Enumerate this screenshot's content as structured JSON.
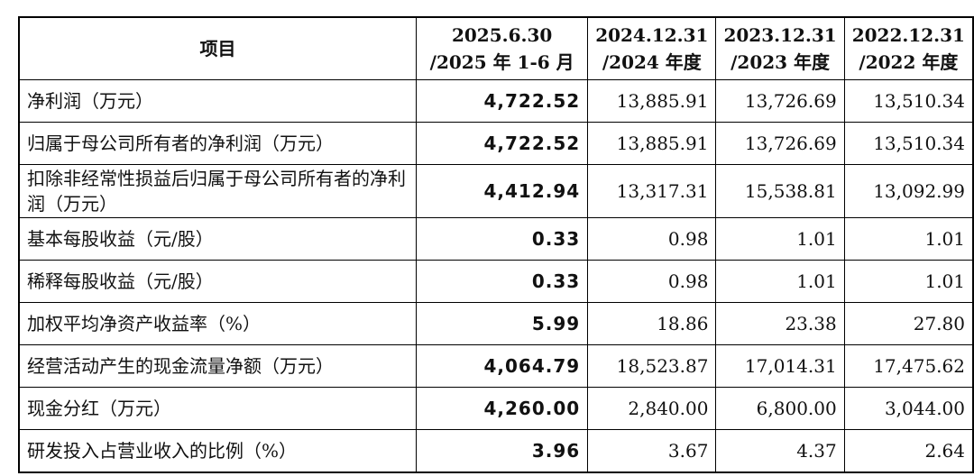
{
  "table": {
    "header": [
      [
        "项目"
      ],
      [
        "2025.6.30",
        "/2025 年 1-6 月"
      ],
      [
        "2024.12.31",
        "/2024 年度"
      ],
      [
        "2023.12.31",
        "/2023 年度"
      ],
      [
        "2022.12.31",
        "/2022 年度"
      ]
    ],
    "rows": [
      [
        "净利润（万元）",
        "4,722.52",
        "13,885.91",
        "13,726.69",
        "13,510.34"
      ],
      [
        "归属于母公司所有者的净利润（万元）",
        "4,722.52",
        "13,885.91",
        "13,726.69",
        "13,510.34"
      ],
      [
        "扣除非经常性损益后归属于母公司所有者的净利润（万元）",
        "4,412.94",
        "13,317.31",
        "15,538.81",
        "13,092.99"
      ],
      [
        "基本每股收益（元/股）",
        "0.33",
        "0.98",
        "1.01",
        "1.01"
      ],
      [
        "稀释每股收益（元/股）",
        "0.33",
        "0.98",
        "1.01",
        "1.01"
      ],
      [
        "加权平均净资产收益率（%）",
        "5.99",
        "18.86",
        "23.38",
        "27.80"
      ],
      [
        "经营活动产生的现金流量净额（万元）",
        "4,064.79",
        "18,523.87",
        "17,014.31",
        "17,475.62"
      ],
      [
        "现金分红（万元）",
        "4,260.00",
        "2,840.00",
        "6,800.00",
        "3,044.00"
      ],
      [
        "研发投入占营业收入的比例（%）",
        "3.96",
        "3.67",
        "4.37",
        "2.64"
      ]
    ]
  }
}
